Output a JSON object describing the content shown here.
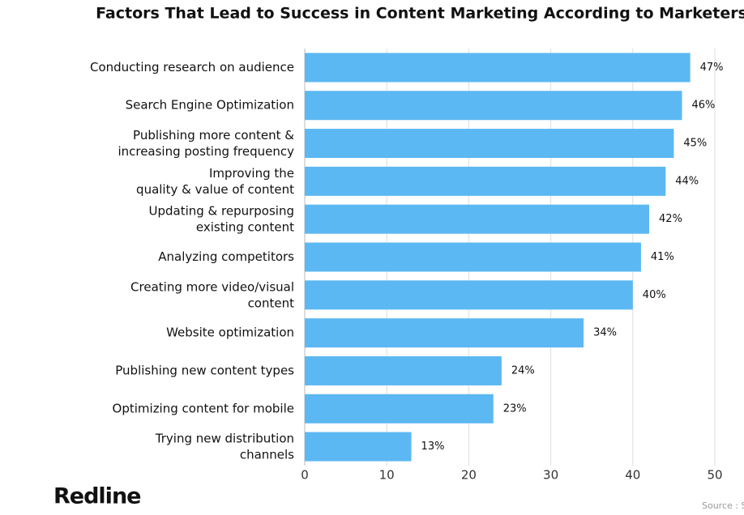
{
  "chart_data": {
    "type": "bar",
    "orientation": "horizontal",
    "title": "Factors That Lead to Success in Content Marketing According to Marketers",
    "categories": [
      "Conducting research on audience",
      "Search Engine Optimization",
      "Publishing more content &\nincreasing posting frequency",
      "Improving the\nquality & value of content",
      "Updating & repurposing\nexisting content",
      "Analyzing competitors",
      "Creating more video/visual\ncontent",
      "Website optimization",
      "Publishing new content types",
      "Optimizing content for mobile",
      "Trying new distribution\nchannels"
    ],
    "values": [
      47,
      46,
      45,
      44,
      42,
      41,
      40,
      34,
      24,
      23,
      13
    ],
    "value_labels": [
      "47%",
      "46%",
      "45%",
      "44%",
      "42%",
      "41%",
      "40%",
      "34%",
      "24%",
      "23%",
      "13%"
    ],
    "color": "#5cb8f2",
    "xlim": [
      0,
      50
    ],
    "xticks": [
      0,
      10,
      20,
      30,
      40,
      50
    ],
    "grid": true
  },
  "brand": "Redline",
  "source": "Source : S"
}
